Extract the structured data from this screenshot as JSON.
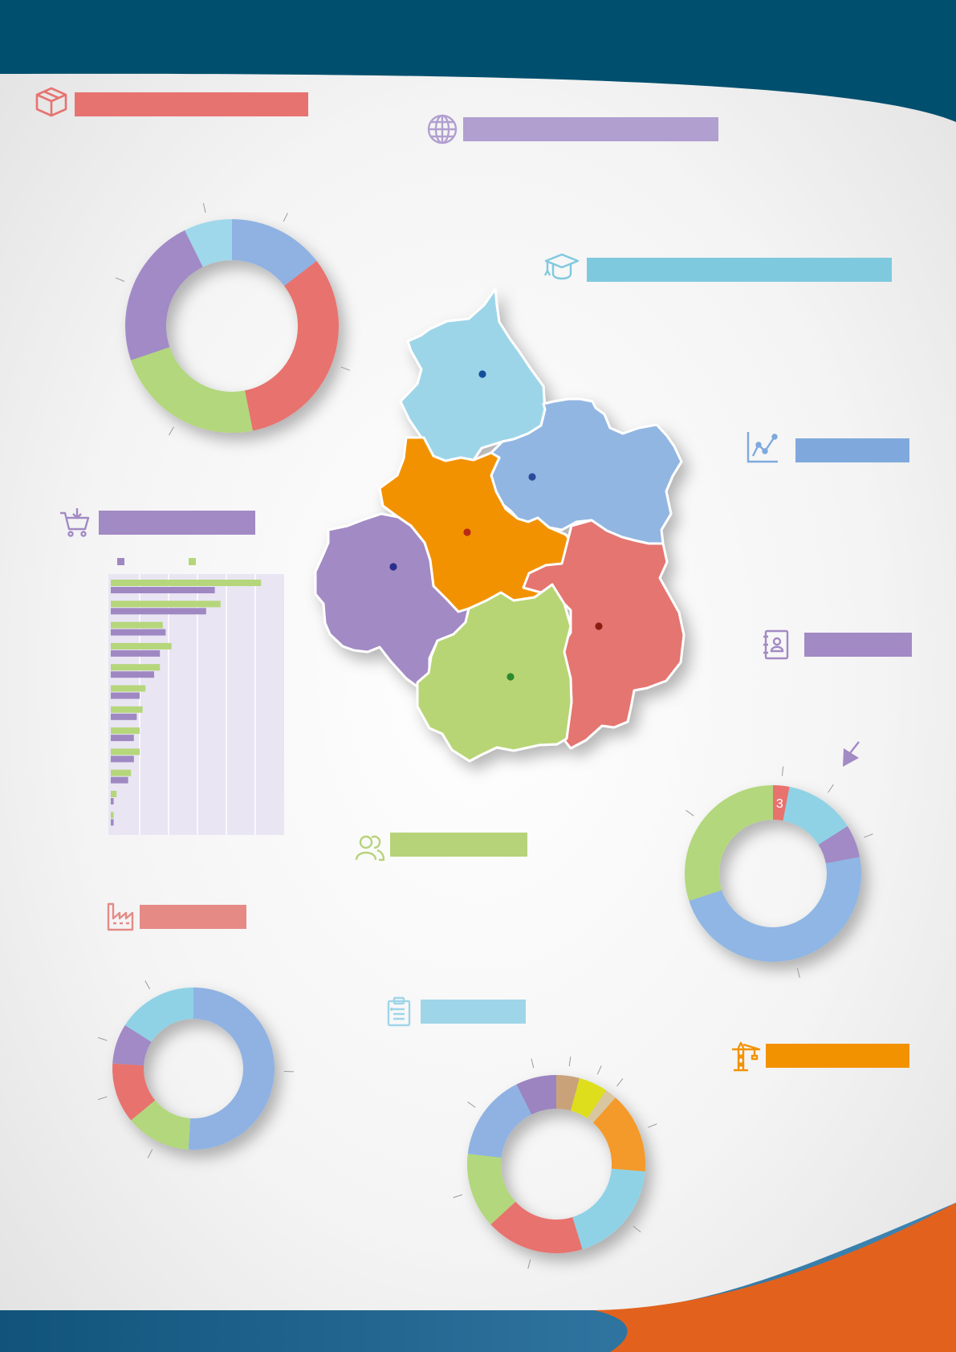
{
  "colors": {
    "header": "#004f6e",
    "footer_blue": "#1d5b80",
    "footer_orange": "#e2621d",
    "red": "#e6726e",
    "purple": "#a28ac4",
    "lavender": "#b19fd0",
    "cyan": "#7fc9df",
    "blue": "#7fa9dc",
    "green": "#b6d37a",
    "orange": "#f39200"
  },
  "sections": [
    {
      "icon": "box-icon",
      "color": "#e77370"
    },
    {
      "icon": "globe-icon",
      "color": "#b19fd0"
    },
    {
      "icon": "graduation-cap-icon",
      "color": "#7fc9df"
    },
    {
      "icon": "trend-chart-icon",
      "color": "#7fa9dc"
    },
    {
      "icon": "shopping-cart-icon",
      "color": "#a28ac4"
    },
    {
      "icon": "address-book-icon",
      "color": "#a28ac4"
    },
    {
      "icon": "people-icon",
      "color": "#b6d37a"
    },
    {
      "icon": "factory-icon",
      "color": "#e68a86"
    },
    {
      "icon": "clipboard-icon",
      "color": "#9fd5e9"
    },
    {
      "icon": "crane-icon",
      "color": "#f39200"
    }
  ],
  "map": {
    "regions": [
      {
        "name": "north",
        "color": "#9dd5e8"
      },
      {
        "name": "north-east",
        "color": "#92b6e2"
      },
      {
        "name": "center",
        "color": "#f39200"
      },
      {
        "name": "west",
        "color": "#a28ac4"
      },
      {
        "name": "south-east",
        "color": "#e47470"
      },
      {
        "name": "south",
        "color": "#b8d575"
      }
    ]
  },
  "chart_data": [
    {
      "type": "pie",
      "name": "donut-top-left",
      "values": [
        14,
        31,
        22,
        22,
        7
      ],
      "colors": [
        "#8fb2e3",
        "#e8726e",
        "#b3d77b",
        "#a18ac6",
        "#9fd8ea"
      ]
    },
    {
      "type": "bar",
      "name": "horizontal-bars",
      "orientation": "horizontal",
      "series": [
        {
          "color": "#b5d67a",
          "values": [
            52,
            38,
            18,
            21,
            17,
            12,
            11,
            10,
            10,
            7,
            2,
            1
          ]
        },
        {
          "color": "#9f88c2",
          "values": [
            36,
            33,
            19,
            17,
            15,
            10,
            9,
            8,
            8,
            6,
            1,
            1
          ]
        }
      ],
      "xlim": [
        0,
        60
      ]
    },
    {
      "type": "pie",
      "name": "donut-right",
      "values": [
        3,
        13,
        6,
        48,
        30
      ],
      "colors": [
        "#e8726e",
        "#8fd2e6",
        "#a18ac6",
        "#8fb6e4",
        "#b3d77b"
      ],
      "labels": [
        "3",
        "",
        "",
        "",
        ""
      ]
    },
    {
      "type": "pie",
      "name": "donut-bottom-left",
      "values": [
        51,
        13,
        12,
        8,
        16
      ],
      "colors": [
        "#8fb2e3",
        "#b3d77b",
        "#e8726e",
        "#a18ac6",
        "#8fd2e6"
      ]
    },
    {
      "type": "pie",
      "name": "donut-bottom-center",
      "values": [
        4,
        5,
        2,
        14,
        18,
        17,
        13,
        15,
        7
      ],
      "colors": [
        "#c9a27a",
        "#dede1a",
        "#d8c6a0",
        "#f39a2b",
        "#8fd2e6",
        "#e8726e",
        "#b3d77b",
        "#8fb2e3",
        "#9b84c0"
      ],
      "start_angle": 0
    }
  ]
}
